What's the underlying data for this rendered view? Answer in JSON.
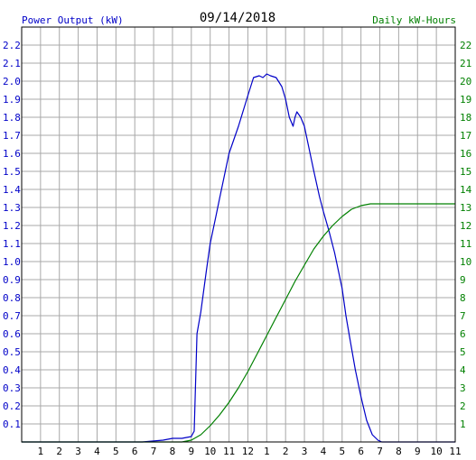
{
  "chart_data": {
    "type": "line",
    "title": "09/14/2018",
    "ylabel_left": "Power Output (kW)",
    "ylabel_right": "Daily kW-Hours",
    "colors": {
      "left": "#0000c8",
      "right": "#008000",
      "grid": "#a8a8a8",
      "frame": "#000000"
    },
    "xlim": [
      0,
      23
    ],
    "ylim_left": [
      0,
      2.3
    ],
    "ylim_right": [
      0,
      23
    ],
    "x_ticks": [
      {
        "x": 1,
        "label": "1"
      },
      {
        "x": 2,
        "label": "2"
      },
      {
        "x": 3,
        "label": "3"
      },
      {
        "x": 4,
        "label": "4"
      },
      {
        "x": 5,
        "label": "5"
      },
      {
        "x": 6,
        "label": "6"
      },
      {
        "x": 7,
        "label": "7"
      },
      {
        "x": 8,
        "label": "8"
      },
      {
        "x": 9,
        "label": "9"
      },
      {
        "x": 10,
        "label": "10"
      },
      {
        "x": 11,
        "label": "11"
      },
      {
        "x": 12,
        "label": "12"
      },
      {
        "x": 13,
        "label": "1"
      },
      {
        "x": 14,
        "label": "2"
      },
      {
        "x": 15,
        "label": "3"
      },
      {
        "x": 16,
        "label": "4"
      },
      {
        "x": 17,
        "label": "5"
      },
      {
        "x": 18,
        "label": "6"
      },
      {
        "x": 19,
        "label": "7"
      },
      {
        "x": 20,
        "label": "8"
      },
      {
        "x": 21,
        "label": "9"
      },
      {
        "x": 22,
        "label": "10"
      },
      {
        "x": 23,
        "label": "11"
      }
    ],
    "y_left_ticks": [
      "0.1",
      "0.2",
      "0.3",
      "0.4",
      "0.5",
      "0.6",
      "0.7",
      "0.8",
      "0.9",
      "1.0",
      "1.1",
      "1.2",
      "1.3",
      "1.4",
      "1.5",
      "1.6",
      "1.7",
      "1.8",
      "1.9",
      "2.0",
      "2.1",
      "2.2"
    ],
    "y_right_ticks": [
      "1",
      "2",
      "3",
      "4",
      "5",
      "6",
      "7",
      "8",
      "9",
      "10",
      "11",
      "12",
      "13",
      "14",
      "15",
      "16",
      "17",
      "18",
      "19",
      "20",
      "21",
      "22"
    ],
    "series": [
      {
        "axis": "left",
        "x": [
          0,
          6.4,
          7.5,
          8.0,
          8.5,
          9.0,
          9.15,
          9.3,
          9.5,
          9.8,
          10.0,
          10.3,
          10.5,
          11.0,
          11.5,
          12.0,
          12.3,
          12.6,
          12.8,
          13.0,
          13.2,
          13.5,
          13.8,
          14.0,
          14.2,
          14.4,
          14.5,
          14.6,
          14.8,
          15.0,
          15.2,
          15.5,
          15.8,
          16.0,
          16.3,
          16.6,
          17.0,
          17.2,
          17.4,
          17.7,
          18.0,
          18.3,
          18.6,
          18.9,
          19.1,
          19.3,
          19.5,
          20.0,
          23.0
        ],
        "y": [
          0.0,
          0.0,
          0.01,
          0.02,
          0.02,
          0.03,
          0.06,
          0.6,
          0.72,
          0.95,
          1.1,
          1.25,
          1.35,
          1.6,
          1.75,
          1.92,
          2.02,
          2.03,
          2.02,
          2.04,
          2.03,
          2.02,
          1.97,
          1.9,
          1.8,
          1.75,
          1.8,
          1.83,
          1.8,
          1.75,
          1.65,
          1.5,
          1.36,
          1.28,
          1.17,
          1.05,
          0.85,
          0.7,
          0.58,
          0.4,
          0.25,
          0.12,
          0.04,
          0.01,
          0.0,
          0.0,
          0.0,
          0.0,
          0.0
        ]
      },
      {
        "axis": "right",
        "x": [
          0,
          8.5,
          9.0,
          9.5,
          10.0,
          10.5,
          11.0,
          11.5,
          12.0,
          12.5,
          13.0,
          13.5,
          14.0,
          14.5,
          15.0,
          15.5,
          16.0,
          16.5,
          17.0,
          17.5,
          18.0,
          18.5,
          19.0,
          19.5,
          20.0,
          23.0
        ],
        "y": [
          0,
          0,
          0.1,
          0.4,
          0.9,
          1.5,
          2.2,
          3.0,
          3.9,
          4.9,
          5.9,
          6.9,
          7.9,
          8.9,
          9.8,
          10.7,
          11.4,
          12.0,
          12.5,
          12.9,
          13.1,
          13.2,
          13.2,
          13.2,
          13.2,
          13.2
        ]
      }
    ]
  }
}
